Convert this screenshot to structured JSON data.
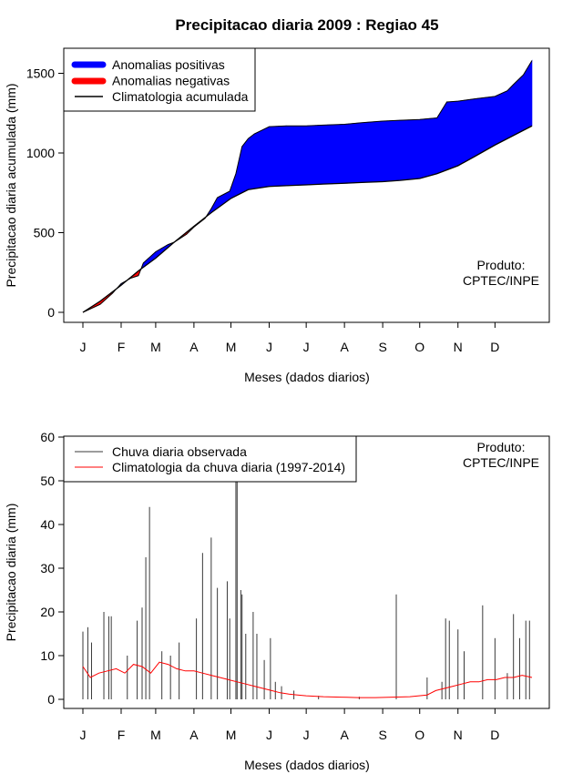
{
  "title": "Precipitacao diaria 2009 : Regiao 45",
  "chart_data": [
    {
      "type": "area",
      "ylabel": "Precipitacao diaria acumulada (mm)",
      "xlabel": "Meses (dados diarios)",
      "month_labels": [
        "J",
        "F",
        "M",
        "A",
        "M",
        "J",
        "J",
        "A",
        "S",
        "O",
        "N",
        "D"
      ],
      "xlim": [
        1,
        365
      ],
      "ylim": [
        0,
        1600
      ],
      "yticks": [
        0,
        500,
        1000,
        1500
      ],
      "legend": {
        "position": "top-left",
        "entries": [
          "Anomalias positivas",
          "Anomalias negativas",
          "Climatologia acumulada"
        ]
      },
      "colors": {
        "positive": "#0000ff",
        "negative": "#ff0000",
        "line": "#000000"
      },
      "annotation": [
        "Produto:",
        "CPTEC/INPE"
      ],
      "climatology_cumulative": {
        "day": [
          1,
          15,
          32,
          46,
          60,
          75,
          91,
          105,
          121,
          135,
          152,
          166,
          182,
          196,
          213,
          227,
          244,
          258,
          274,
          288,
          305,
          319,
          335,
          350,
          365
        ],
        "value": [
          0,
          70,
          170,
          260,
          340,
          440,
          540,
          625,
          715,
          770,
          790,
          795,
          800,
          805,
          810,
          815,
          820,
          828,
          840,
          870,
          920,
          980,
          1050,
          1110,
          1170
        ]
      },
      "observed_cumulative": {
        "day": [
          1,
          15,
          25,
          32,
          40,
          46,
          50,
          60,
          70,
          75,
          85,
          91,
          100,
          105,
          110,
          120,
          125,
          130,
          135,
          140,
          152,
          166,
          182,
          196,
          213,
          227,
          244,
          258,
          274,
          288,
          292,
          296,
          305,
          319,
          335,
          345,
          350,
          358,
          365
        ],
        "value": [
          0,
          50,
          120,
          180,
          215,
          230,
          310,
          380,
          425,
          440,
          490,
          535,
          590,
          650,
          720,
          760,
          870,
          1040,
          1090,
          1120,
          1165,
          1170,
          1170,
          1175,
          1180,
          1190,
          1200,
          1205,
          1210,
          1220,
          1270,
          1320,
          1325,
          1340,
          1355,
          1390,
          1430,
          1490,
          1580
        ]
      }
    },
    {
      "type": "bar",
      "ylabel": "Precipitacao diaria (mm)",
      "xlabel": "Meses (dados diarios)",
      "month_labels": [
        "J",
        "F",
        "M",
        "A",
        "M",
        "J",
        "J",
        "A",
        "S",
        "O",
        "N",
        "D"
      ],
      "xlim": [
        1,
        365
      ],
      "ylim": [
        0,
        60
      ],
      "yticks": [
        0,
        10,
        20,
        30,
        40,
        50,
        60
      ],
      "legend": {
        "position": "top-left",
        "entries": [
          "Chuva diaria observada",
          "Climatologia da chuva diaria (1997-2014)"
        ]
      },
      "colors": {
        "observed": "#3a3a3a",
        "climatology": "#ff0000"
      },
      "annotation": [
        "Produto:",
        "CPTEC/INPE"
      ],
      "observed_daily_peaks": {
        "day": [
          1,
          5,
          8,
          18,
          22,
          24,
          37,
          45,
          49,
          52,
          55,
          65,
          72,
          79,
          93,
          98,
          105,
          110,
          118,
          120,
          125,
          126,
          129,
          130,
          133,
          139,
          142,
          148,
          153,
          157,
          162,
          172,
          192,
          225,
          255,
          280,
          292,
          295,
          298,
          305,
          310,
          325,
          335,
          345,
          350,
          355,
          360,
          363
        ],
        "value": [
          15.5,
          16.5,
          13,
          20,
          19,
          19,
          10,
          18,
          21,
          32.5,
          44,
          11,
          10,
          13,
          18.5,
          33.5,
          37,
          25.5,
          27,
          18.5,
          50,
          64,
          25,
          24,
          15,
          20,
          15,
          9,
          14,
          4,
          3,
          2,
          0.8,
          0.6,
          24,
          5,
          4,
          18.5,
          18,
          16,
          11,
          21.5,
          14,
          6,
          19.5,
          14,
          18,
          18
        ]
      },
      "climatology_daily": {
        "day": [
          1,
          7,
          14,
          21,
          28,
          35,
          42,
          49,
          56,
          63,
          70,
          77,
          84,
          91,
          98,
          105,
          112,
          119,
          126,
          133,
          140,
          147,
          154,
          161,
          168,
          175,
          182,
          196,
          210,
          224,
          238,
          252,
          266,
          280,
          287,
          294,
          301,
          308,
          315,
          322,
          329,
          336,
          343,
          350,
          357,
          365
        ],
        "value": [
          7.5,
          5,
          6,
          6.5,
          7,
          6,
          8,
          7.5,
          6,
          8.5,
          8,
          7,
          6.5,
          6.5,
          6,
          5.5,
          5,
          4.5,
          4,
          3.5,
          3,
          2.5,
          2,
          1.5,
          1.2,
          1,
          0.8,
          0.6,
          0.5,
          0.4,
          0.4,
          0.5,
          0.6,
          1,
          2,
          2.5,
          3,
          3.5,
          4,
          4,
          4.5,
          4.5,
          5,
          5,
          5.5,
          5
        ]
      }
    }
  ]
}
